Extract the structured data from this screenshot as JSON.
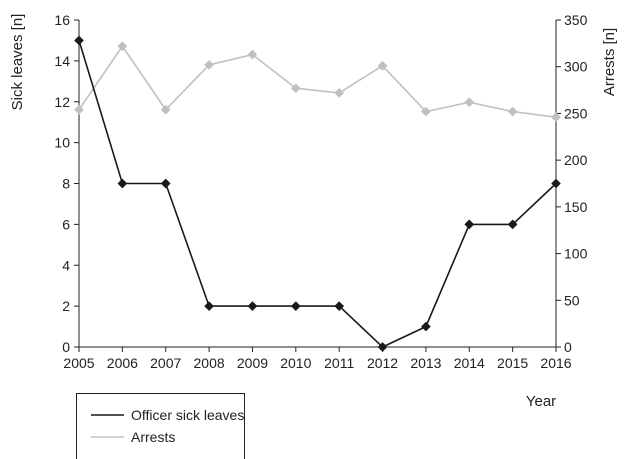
{
  "chart_data": {
    "type": "line",
    "x": [
      2005,
      2006,
      2007,
      2008,
      2009,
      2010,
      2011,
      2012,
      2013,
      2014,
      2015,
      2016
    ],
    "series": [
      {
        "name": "Officer sick leaves",
        "axis": "left",
        "color": "#1a1a1a",
        "marker": "diamond",
        "values": [
          15,
          8,
          8,
          2,
          2,
          2,
          2,
          0,
          1,
          6,
          6,
          8
        ]
      },
      {
        "name": "Arrests",
        "axis": "right",
        "color": "#c0c0c0",
        "marker": "diamond",
        "values": [
          254,
          322,
          254,
          302,
          313,
          277,
          272,
          301,
          252,
          262,
          252,
          246
        ]
      }
    ],
    "ylabel": "Sick leaves [n]",
    "y2label": "Arrests [n]",
    "xlabel": "Year",
    "ylim": [
      0,
      16
    ],
    "y2lim": [
      0,
      350
    ],
    "yticks": [
      0,
      2,
      4,
      6,
      8,
      10,
      12,
      14,
      16
    ],
    "y2ticks": [
      0,
      50,
      100,
      150,
      200,
      250,
      300,
      350
    ],
    "grid": false,
    "legend_position": "bottom-left"
  }
}
